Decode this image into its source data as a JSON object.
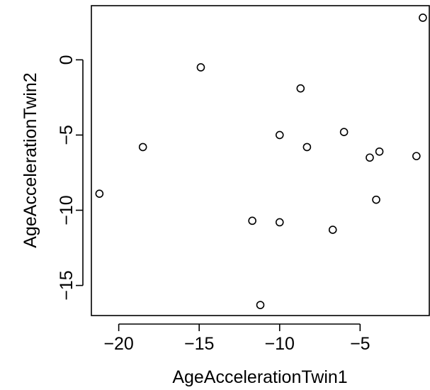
{
  "chart_data": {
    "type": "scatter",
    "title": "",
    "xlabel": "AgeAccelerationTwin1",
    "ylabel": "AgeAccelerationTwin2",
    "xlim": [
      -21.7,
      -0.7
    ],
    "ylim": [
      -17.0,
      3.6
    ],
    "x_ticks": [
      -20,
      -15,
      -10,
      -5
    ],
    "y_ticks": [
      0,
      -5,
      -10,
      -15
    ],
    "x_tick_labels": [
      "−20",
      "−15",
      "−10",
      "−5"
    ],
    "y_tick_labels": [
      "0",
      "−5",
      "−10",
      "−15"
    ],
    "grid": false,
    "points": [
      {
        "x": -21.2,
        "y": -8.9
      },
      {
        "x": -18.5,
        "y": -5.8
      },
      {
        "x": -14.9,
        "y": -0.5
      },
      {
        "x": -11.7,
        "y": -10.7
      },
      {
        "x": -11.2,
        "y": -16.3
      },
      {
        "x": -10.0,
        "y": -5.0
      },
      {
        "x": -10.0,
        "y": -10.8
      },
      {
        "x": -8.7,
        "y": -1.9
      },
      {
        "x": -8.3,
        "y": -5.8
      },
      {
        "x": -6.7,
        "y": -11.3
      },
      {
        "x": -6.0,
        "y": -4.8
      },
      {
        "x": -4.4,
        "y": -6.5
      },
      {
        "x": -4.0,
        "y": -9.3
      },
      {
        "x": -3.8,
        "y": -6.1
      },
      {
        "x": -1.5,
        "y": -6.4
      },
      {
        "x": -1.1,
        "y": 2.8
      }
    ]
  }
}
